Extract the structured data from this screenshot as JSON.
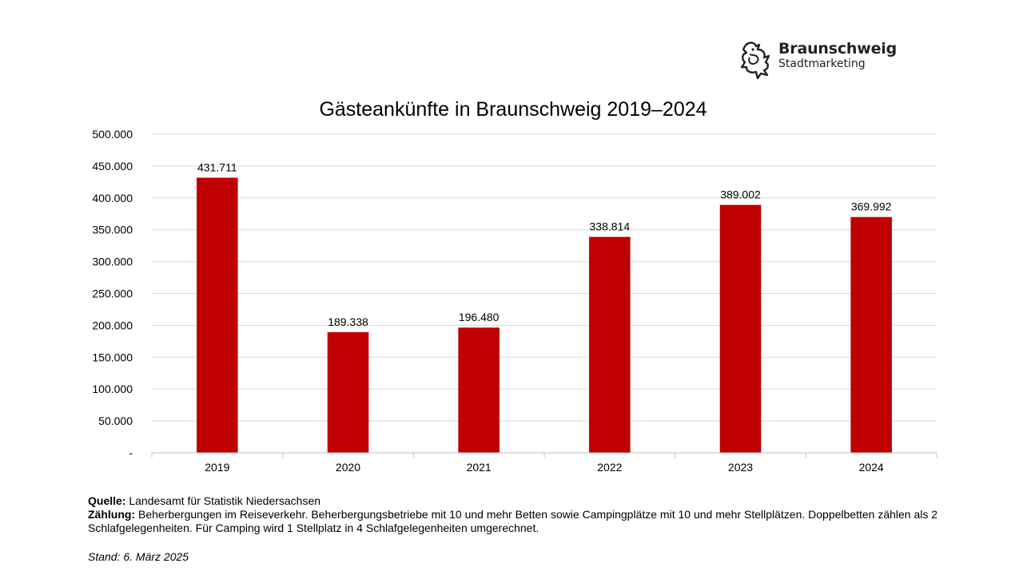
{
  "logo": {
    "name": "Braunschweig",
    "subtitle": "Stadtmarketing"
  },
  "chart_data": {
    "type": "bar",
    "title": "Gästeankünfte in Braunschweig 2019–2024",
    "categories": [
      "2019",
      "2020",
      "2021",
      "2022",
      "2023",
      "2024"
    ],
    "values": [
      431711,
      189338,
      196480,
      338814,
      389002,
      369992
    ],
    "data_labels": [
      "431.711",
      "189.338",
      "196.480",
      "338.814",
      "389.002",
      "369.992"
    ],
    "ylim": [
      0,
      500000
    ],
    "yticks": [
      0,
      50000,
      100000,
      150000,
      200000,
      250000,
      300000,
      350000,
      400000,
      450000,
      500000
    ],
    "ytick_labels": [
      "-",
      "50.000",
      "100.000",
      "150.000",
      "200.000",
      "250.000",
      "300.000",
      "350.000",
      "400.000",
      "450.000",
      "500.000"
    ],
    "grid": true,
    "bar_color": "#c00000",
    "grid_color": "#d9d9d9",
    "xlabel": "",
    "ylabel": ""
  },
  "notes": {
    "source_label": "Quelle:",
    "source_text": " Landesamt für Statistik Niedersachsen",
    "count_label": "Zählung:",
    "count_text": " Beherbergungen im Reiseverkehr. Beherbergungsbetriebe mit 10 und mehr Betten sowie Campingplätze mit 10 und mehr Stellplätzen. Doppelbetten zählen als 2 Schlafgelegenheiten. Für Camping wird 1 Stellplatz in 4 Schlafgelegenheiten umgerechnet.",
    "stand": "Stand: 6. März 2025"
  }
}
